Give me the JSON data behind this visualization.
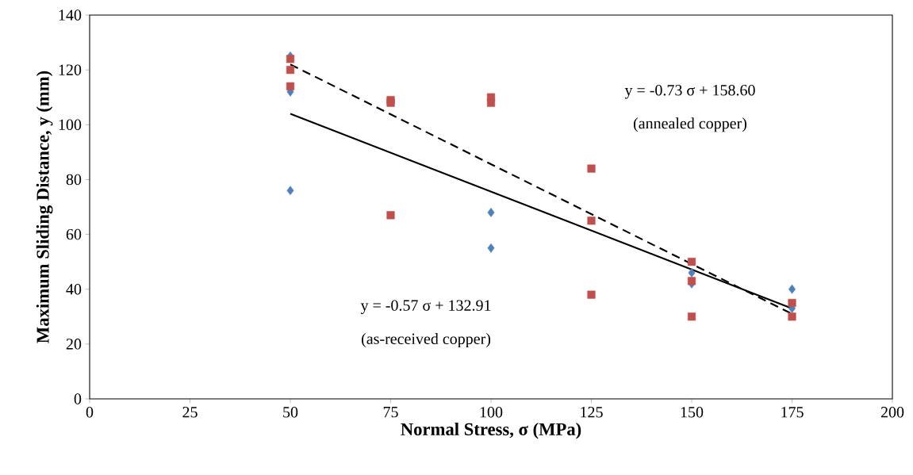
{
  "chart_data": {
    "type": "scatter",
    "xlabel": "Normal Stress, σ (MPa)",
    "ylabel": "Maximum Sliding Distance, y (mm)",
    "xlim": [
      0,
      200
    ],
    "xticks": [
      0,
      25,
      50,
      75,
      100,
      125,
      150,
      175,
      200
    ],
    "ylim": [
      0,
      140
    ],
    "yticks": [
      0,
      20,
      40,
      60,
      80,
      100,
      120,
      140
    ],
    "grid": false,
    "series": [
      {
        "color": "#4f81bd",
        "marker": "diamond",
        "x": [
          50,
          50,
          50,
          100,
          100,
          150,
          150,
          175,
          175
        ],
        "values": [
          125,
          112,
          76,
          68,
          55,
          46,
          42,
          40,
          33
        ]
      },
      {
        "color": "#c0504d",
        "marker": "square",
        "x": [
          50,
          50,
          50,
          75,
          75,
          75,
          100,
          100,
          125,
          125,
          125,
          150,
          150,
          150,
          175,
          175
        ],
        "values": [
          124,
          120,
          114,
          109,
          108,
          67,
          110,
          108,
          84,
          65,
          38,
          50,
          43,
          30,
          35,
          30
        ]
      },
      {
        "type": "line",
        "color": "#000000",
        "marker": "none",
        "line_style": "solid",
        "x": [
          50,
          175
        ],
        "values": [
          104,
          33
        ]
      },
      {
        "type": "line",
        "color": "#000000",
        "marker": "none",
        "line_style": "dashed",
        "x": [
          50,
          175
        ],
        "values": [
          122,
          31
        ]
      }
    ],
    "annotations": [
      "y = -0.73 σ + 158.60",
      "(annealed copper)",
      "y = -0.57 σ + 132.91",
      "(as-received copper)"
    ]
  }
}
